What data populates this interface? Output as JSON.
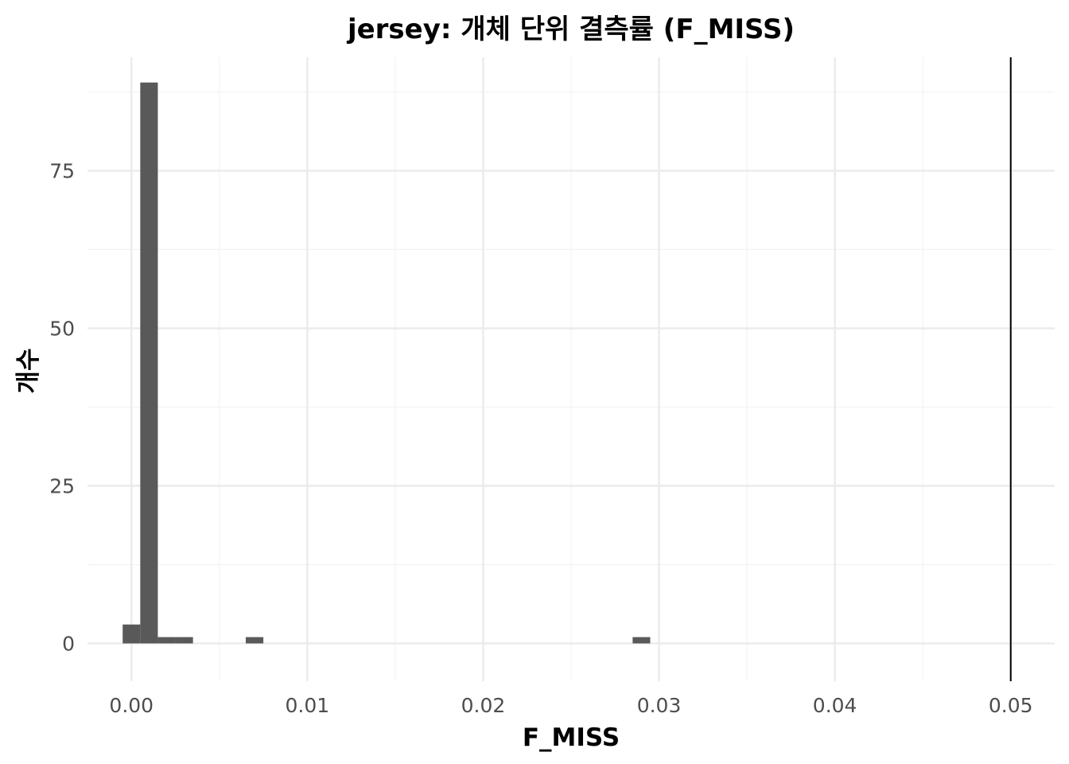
{
  "chart_data": {
    "type": "bar",
    "title": "jersey: 개체 단위 결측률 (F_MISS)",
    "xlabel": "F_MISS",
    "ylabel": "개수",
    "xlim": [
      -0.0025,
      0.0525
    ],
    "ylim": [
      -6,
      93
    ],
    "x_ticks": [
      0.0,
      0.01,
      0.02,
      0.03,
      0.04,
      0.05
    ],
    "x_tick_labels": [
      "0.00",
      "0.01",
      "0.02",
      "0.03",
      "0.04",
      "0.05"
    ],
    "y_ticks": [
      0,
      25,
      50,
      75
    ],
    "y_tick_labels": [
      "0",
      "25",
      "50",
      "75"
    ],
    "bin_width": 0.001,
    "bins": [
      {
        "x": 0.0,
        "count": 3
      },
      {
        "x": 0.001,
        "count": 89
      },
      {
        "x": 0.002,
        "count": 1
      },
      {
        "x": 0.003,
        "count": 1
      },
      {
        "x": 0.004,
        "count": 0
      },
      {
        "x": 0.005,
        "count": 0
      },
      {
        "x": 0.006,
        "count": 0
      },
      {
        "x": 0.007,
        "count": 1
      },
      {
        "x": 0.029,
        "count": 1
      }
    ],
    "reference_line": {
      "x": 0.05,
      "color": "#000000"
    },
    "bar_color": "#595959",
    "grid": true,
    "legend": "none"
  }
}
